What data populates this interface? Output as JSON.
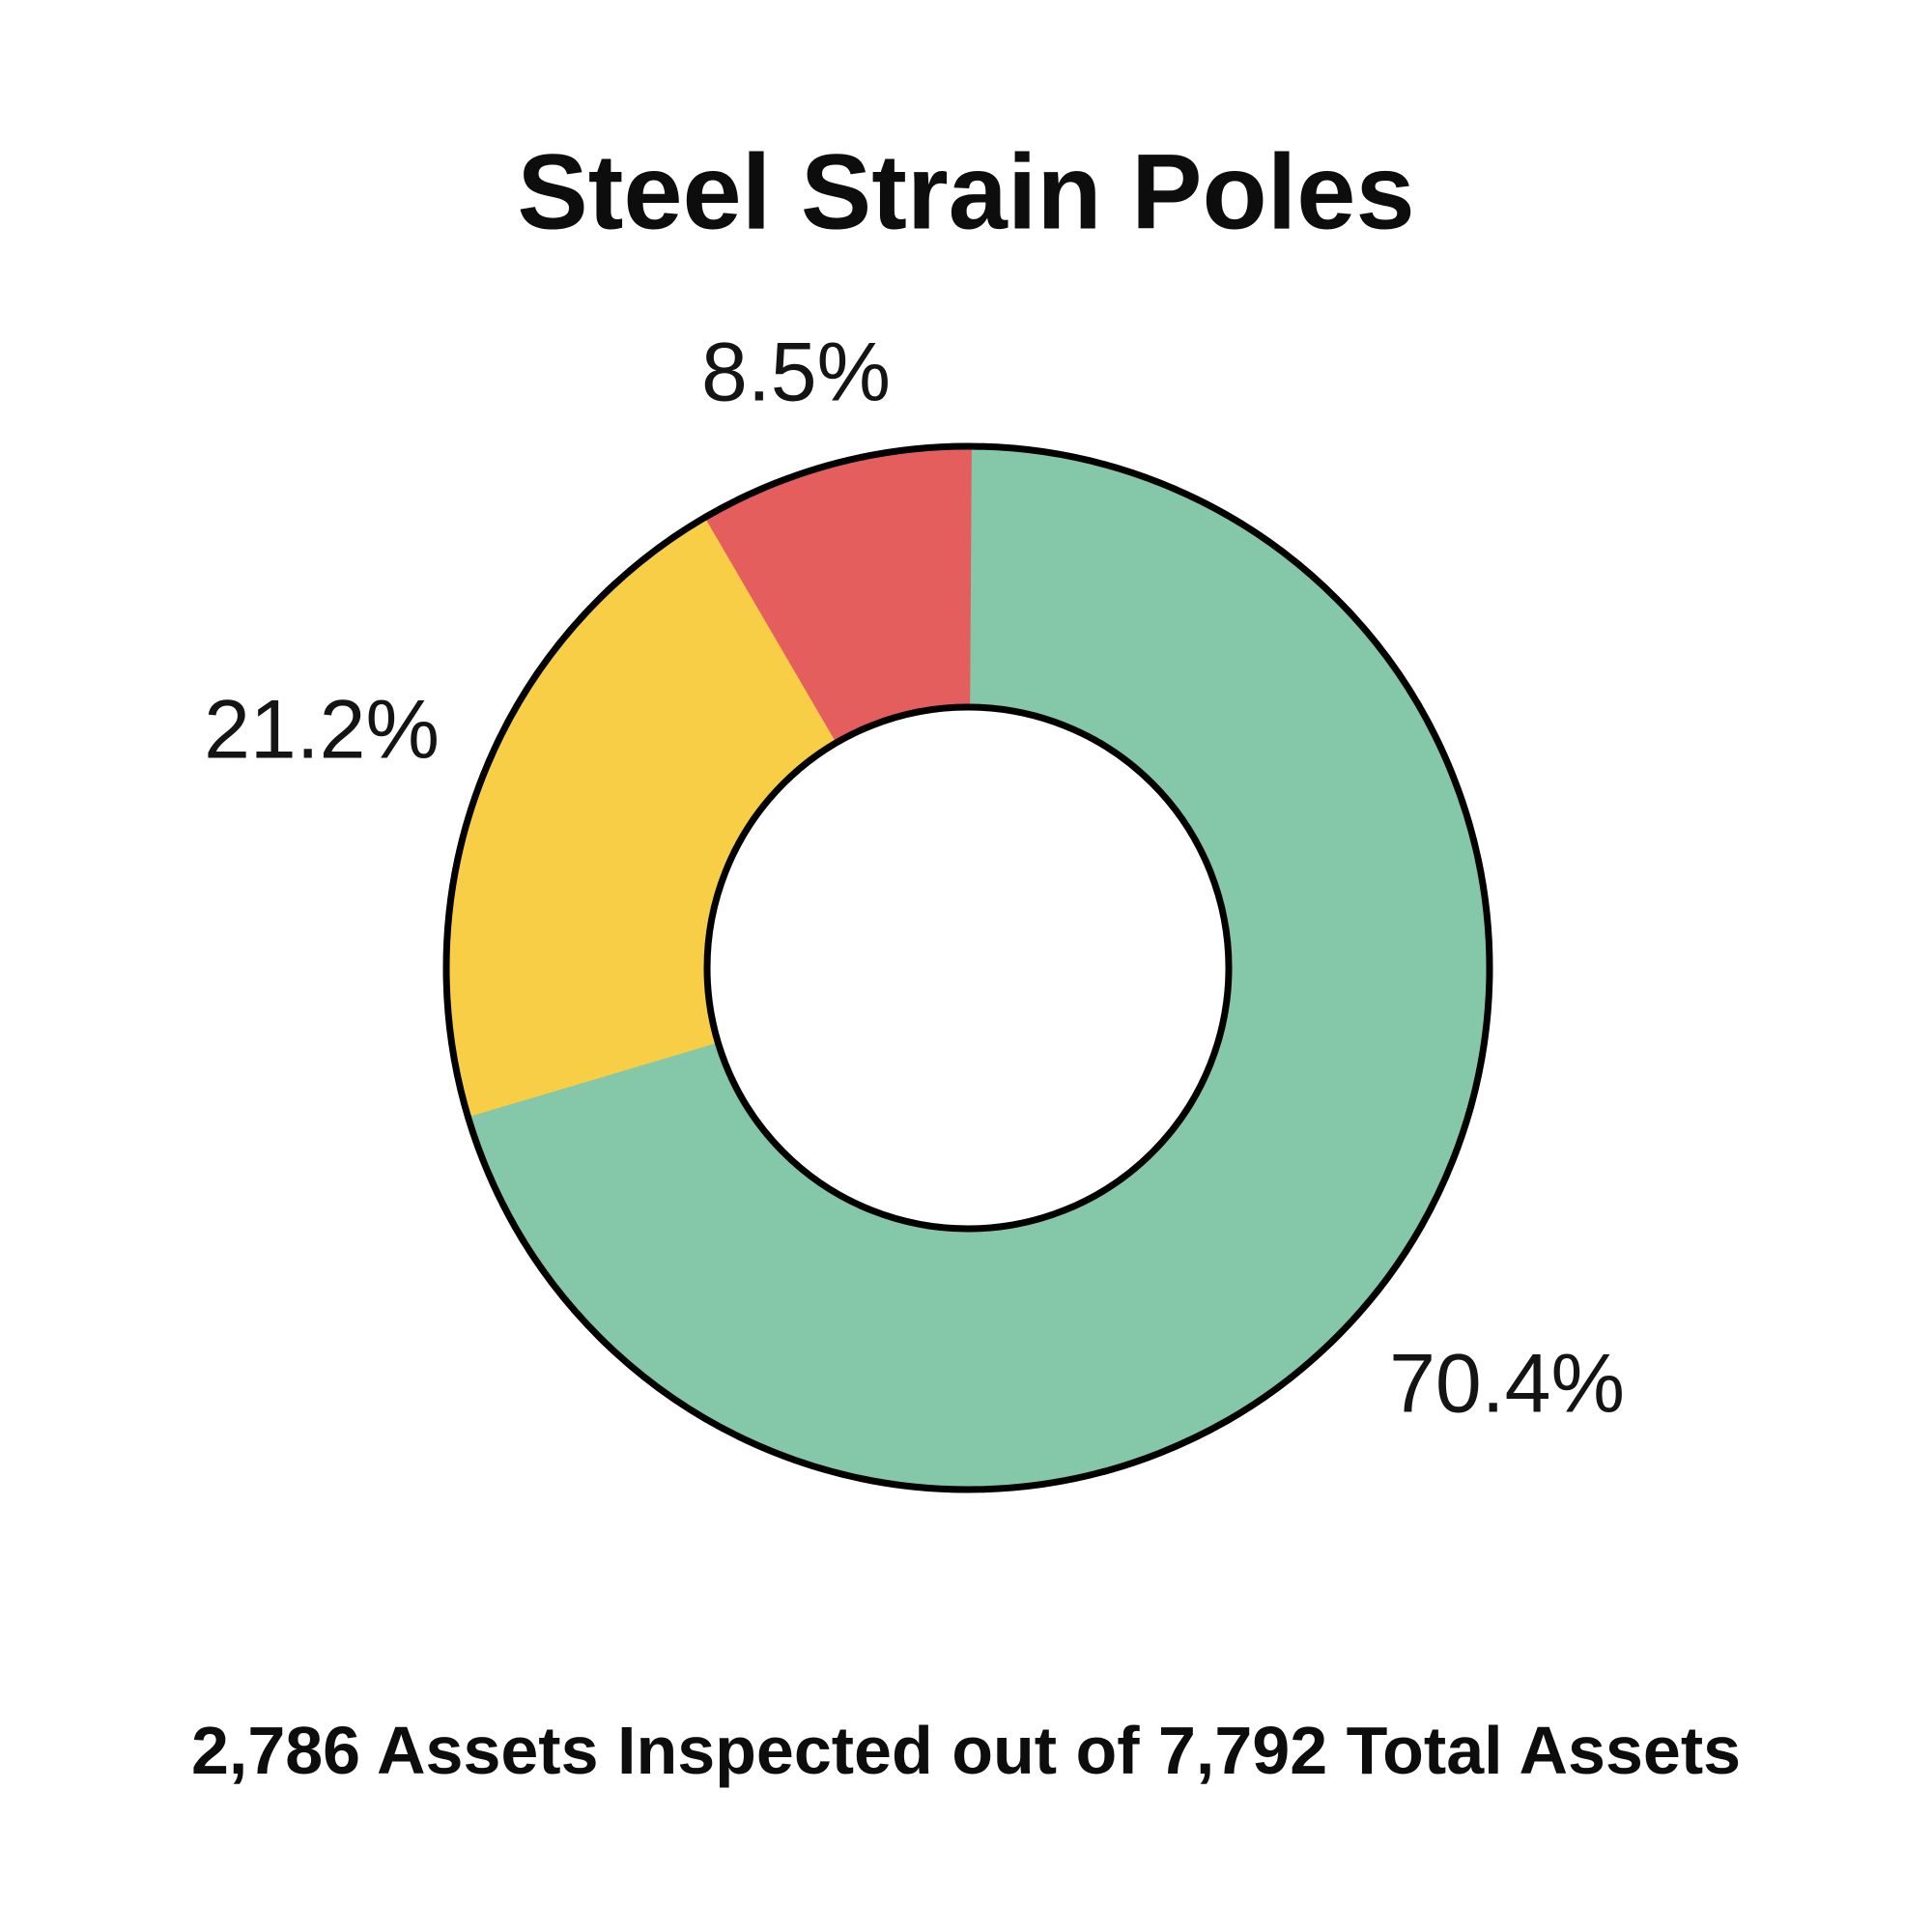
{
  "title": "Steel Strain Poles",
  "caption": "2,786 Assets Inspected out of 7,792 Total Assets",
  "chart_data": {
    "type": "pie",
    "variant": "donut",
    "title": "Steel Strain Poles",
    "subtitle": "2,786 Assets Inspected out of 7,792 Total Assets",
    "assets_inspected": "2,786",
    "total_assets": "7,792",
    "start_angle_deg": 0,
    "direction": "clockwise",
    "inner_radius_ratio": 0.5,
    "outline_color": "#000000",
    "background_color": "#FFFFFF",
    "legend": "none",
    "slices": [
      {
        "name": "green",
        "label": "70.4%",
        "value": 70.4,
        "color": "#84C7A9",
        "label_x": 1560,
        "label_y": 1433
      },
      {
        "name": "yellow",
        "label": "21.2%",
        "value": 21.2,
        "color": "#F8CE46",
        "label_x": 333,
        "label_y": 756
      },
      {
        "name": "red",
        "label": "8.5%",
        "value": 8.5,
        "color": "#E55E5E",
        "label_x": 824,
        "label_y": 386
      }
    ]
  }
}
